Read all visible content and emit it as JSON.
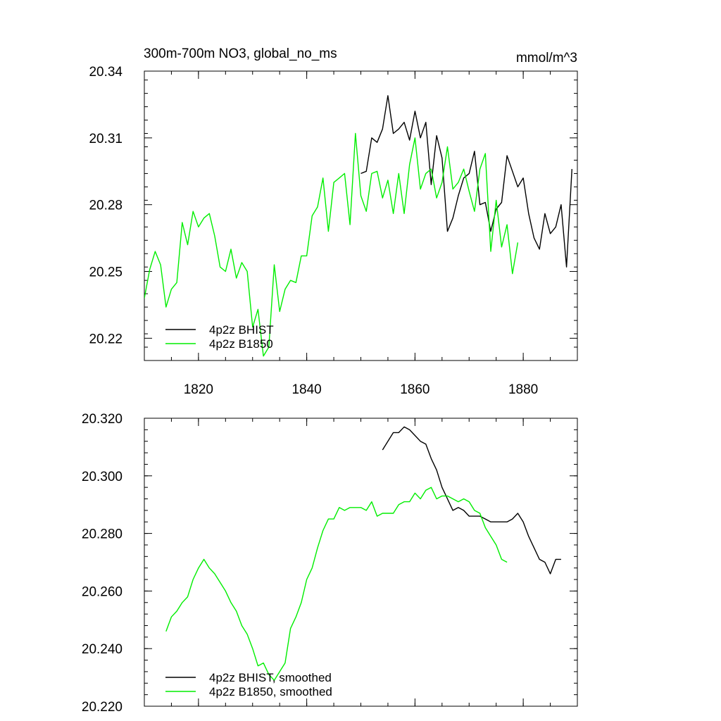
{
  "chart_data": [
    {
      "type": "line",
      "title": "300m-700m NO3, global_no_ms",
      "units": "mmol/m^3",
      "xlim": [
        1810,
        1890
      ],
      "ylim": [
        20.21,
        20.34
      ],
      "x_ticks": [
        1820,
        1840,
        1860,
        1880
      ],
      "x_tick_labels": [
        "1820",
        "1840",
        "1860",
        "1880"
      ],
      "y_ticks": [
        20.22,
        20.25,
        20.28,
        20.31,
        20.34
      ],
      "y_tick_labels": [
        "20.22",
        "20.25",
        "20.28",
        "20.31",
        "20.34"
      ],
      "legend_position": "bottom-left",
      "grid": false,
      "series": [
        {
          "name": "4p2z BHIST",
          "color": "#000000",
          "x": [
            1850,
            1851,
            1852,
            1853,
            1854,
            1855,
            1856,
            1857,
            1858,
            1859,
            1860,
            1861,
            1862,
            1863,
            1864,
            1865,
            1866,
            1867,
            1868,
            1869,
            1870,
            1871,
            1872,
            1873,
            1874,
            1875,
            1876,
            1877,
            1878,
            1879,
            1880,
            1881,
            1882,
            1883,
            1884,
            1885,
            1886,
            1887,
            1888,
            1889
          ],
          "y": [
            20.294,
            20.295,
            20.31,
            20.308,
            20.314,
            20.329,
            20.312,
            20.314,
            20.317,
            20.309,
            20.322,
            20.31,
            20.317,
            20.289,
            20.311,
            20.301,
            20.268,
            20.274,
            20.284,
            20.292,
            20.294,
            20.304,
            20.28,
            20.281,
            20.268,
            20.278,
            20.281,
            20.302,
            20.295,
            20.288,
            20.292,
            20.276,
            20.265,
            20.26,
            20.276,
            20.267,
            20.27,
            20.28,
            20.252,
            20.296
          ]
        },
        {
          "name": "4p2z B1850",
          "color": "#00ee00",
          "x": [
            1810,
            1811,
            1812,
            1813,
            1814,
            1815,
            1816,
            1817,
            1818,
            1819,
            1820,
            1821,
            1822,
            1823,
            1824,
            1825,
            1826,
            1827,
            1828,
            1829,
            1830,
            1831,
            1832,
            1833,
            1834,
            1835,
            1836,
            1837,
            1838,
            1839,
            1840,
            1841,
            1842,
            1843,
            1844,
            1845,
            1846,
            1847,
            1848,
            1849,
            1850,
            1851,
            1852,
            1853,
            1854,
            1855,
            1856,
            1857,
            1858,
            1859,
            1860,
            1861,
            1862,
            1863,
            1864,
            1865,
            1866,
            1867,
            1868,
            1869,
            1870,
            1871,
            1872,
            1873,
            1874,
            1875,
            1876,
            1877,
            1878,
            1879
          ],
          "y": [
            20.238,
            20.251,
            20.259,
            20.253,
            20.234,
            20.242,
            20.245,
            20.272,
            20.262,
            20.277,
            20.27,
            20.274,
            20.276,
            20.266,
            20.252,
            20.25,
            20.26,
            20.247,
            20.254,
            20.25,
            20.225,
            20.233,
            20.212,
            20.216,
            20.253,
            20.232,
            20.242,
            20.246,
            20.245,
            20.257,
            20.257,
            20.275,
            20.279,
            20.292,
            20.268,
            20.29,
            20.292,
            20.294,
            20.271,
            20.312,
            20.284,
            20.277,
            20.294,
            20.295,
            20.283,
            20.291,
            20.276,
            20.294,
            20.276,
            20.298,
            20.31,
            20.287,
            20.294,
            20.296,
            20.283,
            20.29,
            20.306,
            20.287,
            20.29,
            20.296,
            20.286,
            20.277,
            20.296,
            20.303,
            20.259,
            20.282,
            20.261,
            20.271,
            20.249,
            20.263
          ]
        }
      ]
    },
    {
      "type": "line",
      "xlim": [
        1810,
        1890
      ],
      "ylim": [
        20.22,
        20.32
      ],
      "x_ticks": [
        1820,
        1840,
        1860,
        1880
      ],
      "y_ticks": [
        20.22,
        20.24,
        20.26,
        20.28,
        20.3,
        20.32
      ],
      "y_tick_labels": [
        "20.220",
        "20.240",
        "20.260",
        "20.280",
        "20.300",
        "20.320"
      ],
      "legend_position": "bottom-left",
      "grid": false,
      "series": [
        {
          "name": "4p2z BHIST, smoothed",
          "color": "#000000",
          "x": [
            1854,
            1855,
            1856,
            1857,
            1858,
            1859,
            1860,
            1861,
            1862,
            1863,
            1864,
            1865,
            1866,
            1867,
            1868,
            1869,
            1870,
            1871,
            1872,
            1873,
            1874,
            1875,
            1876,
            1877,
            1878,
            1879,
            1880,
            1881,
            1882,
            1883,
            1884,
            1885,
            1886,
            1887
          ],
          "y": [
            20.309,
            20.312,
            20.315,
            20.315,
            20.317,
            20.316,
            20.314,
            20.312,
            20.311,
            20.306,
            20.302,
            20.296,
            20.292,
            20.288,
            20.289,
            20.288,
            20.286,
            20.286,
            20.286,
            20.285,
            20.284,
            20.284,
            20.284,
            20.284,
            20.285,
            20.287,
            20.284,
            20.279,
            20.275,
            20.271,
            20.27,
            20.266,
            20.271,
            20.271
          ]
        },
        {
          "name": "4p2z B1850, smoothed",
          "color": "#00ee00",
          "x": [
            1814,
            1815,
            1816,
            1817,
            1818,
            1819,
            1820,
            1821,
            1822,
            1823,
            1824,
            1825,
            1826,
            1827,
            1828,
            1829,
            1830,
            1831,
            1832,
            1833,
            1834,
            1835,
            1836,
            1837,
            1838,
            1839,
            1840,
            1841,
            1842,
            1843,
            1844,
            1845,
            1846,
            1847,
            1848,
            1849,
            1850,
            1851,
            1852,
            1853,
            1854,
            1855,
            1856,
            1857,
            1858,
            1859,
            1860,
            1861,
            1862,
            1863,
            1864,
            1865,
            1866,
            1867,
            1868,
            1869,
            1870,
            1871,
            1872,
            1873,
            1874,
            1875,
            1876,
            1877
          ],
          "y": [
            20.246,
            20.251,
            20.253,
            20.256,
            20.258,
            20.264,
            20.268,
            20.271,
            20.268,
            20.266,
            20.263,
            20.26,
            20.256,
            20.253,
            20.248,
            20.245,
            20.24,
            20.234,
            20.235,
            20.231,
            20.229,
            20.232,
            20.235,
            20.247,
            20.251,
            20.256,
            20.264,
            20.268,
            20.275,
            20.281,
            20.285,
            20.285,
            20.289,
            20.288,
            20.289,
            20.289,
            20.289,
            20.288,
            20.291,
            20.286,
            20.287,
            20.287,
            20.287,
            20.29,
            20.291,
            20.291,
            20.294,
            20.292,
            20.295,
            20.296,
            20.292,
            20.293,
            20.293,
            20.292,
            20.291,
            20.292,
            20.291,
            20.288,
            20.287,
            20.282,
            20.279,
            20.276,
            20.271,
            20.27
          ]
        }
      ]
    }
  ]
}
